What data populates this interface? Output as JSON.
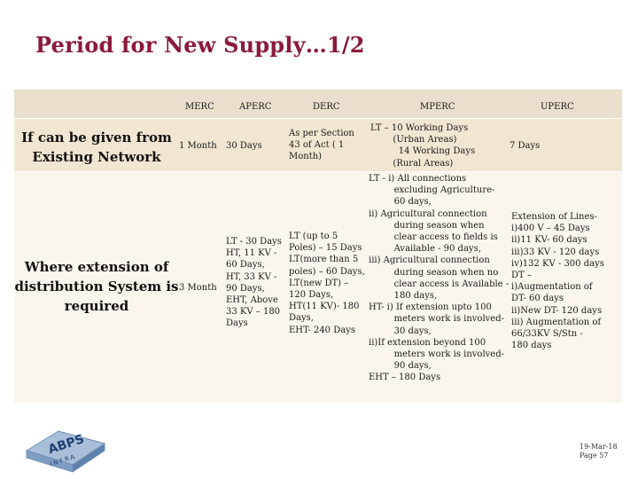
{
  "slide": {
    "title": "Period for New Supply…1/2"
  },
  "table": {
    "headers": {
      "merc": "MERC",
      "aperc": "APERC",
      "derc": "DERC",
      "mperc": "MPERC",
      "uperc": "UPERC"
    },
    "rows": [
      {
        "label": "If can be given from\nExisting Network",
        "merc": "1 Month",
        "aperc": "30 Days",
        "derc": "As per Section\n43 of Act ( 1\nMonth)",
        "mperc": "LT – 10 Working Days\n        (Urban Areas)\n          14 Working Days\n        (Rural Areas)",
        "uperc": "7 Days"
      },
      {
        "label": "Where extension of\ndistribution System is\nrequired",
        "merc": "3 Month",
        "aperc": "LT - 30 Days\nHT, 11 KV -\n60 Days,\nHT, 33 KV -\n90 Days,\nEHT, Above\n33 KV – 180\nDays",
        "derc": "LT (up to 5\nPoles) – 15 Days\nLT(more than 5\npoles) – 60 Days,\nLT(new DT) –\n120 Days,\nHT(11 KV)- 180\nDays,\nEHT- 240 Days",
        "mperc": "LT - i) All connections\n         excluding Agriculture-\n         60 days,\nii) Agricultural connection\n         during season when\n         clear access to fields is\n         Available - 90 days,\niii) Agricultural connection\n         during season when no\n         clear access is Available -\n         180 days,\nHT- i) If extension upto 100\n         meters work is involved-\n         30 days,\nii)If extension beyond 100\n         meters work is involved-\n         90 days,\nEHT – 180 Days",
        "uperc": "Extension of Lines-\ni)400 V – 45 Days\nii)11 KV- 60 days\niii)33 KV - 120 days\niv)132 KV - 300 days\nDT –\ni)Augmentation of\nDT- 60 days\nii)New DT- 120 days\niii) Augmentation of\n66/33KV S/Stn -\n180 days"
      }
    ]
  },
  "footer": {
    "date": "19-Mar-18",
    "page": "Page 57"
  },
  "logo": {
    "text": "ABPS",
    "subtext": "INFRA",
    "colors": {
      "cube": "#8fa9c9",
      "text": "#1f3f73"
    }
  },
  "colors": {
    "title": "#8B1A3A",
    "header_band": "#e9dfcc",
    "row1_band": "#f1e6d1",
    "row2_band": "#faf6ee"
  }
}
